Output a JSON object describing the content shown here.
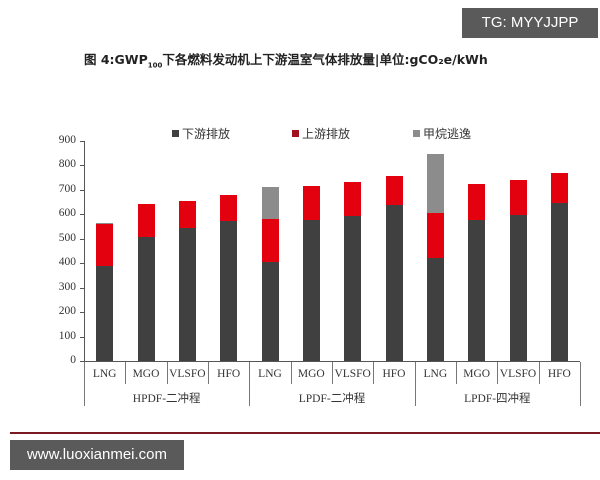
{
  "watermark_top": "TG: MYYJJPP",
  "watermark_bottom": "www.luoxianmei.com",
  "title": {
    "prefix": "图 4:GWP",
    "sub": "100",
    "suffix": "下各燃料发动机上下游温室气体排放量|单位:gCO₂e/kWh"
  },
  "legend": [
    {
      "label": "下游排放",
      "color": "#404040"
    },
    {
      "label": "上游排放",
      "color": "#e3000f"
    },
    {
      "label": "甲烷逃逸",
      "color": "#8c8c8c"
    }
  ],
  "y_ticks": [
    "900",
    "800",
    "700",
    "600",
    "500",
    "400",
    "300",
    "200",
    "100",
    "0"
  ],
  "groups": [
    "HPDF-二冲程",
    "LPDF-二冲程",
    "LPDF-四冲程"
  ],
  "categories": [
    "LNG",
    "MGO",
    "VLSFO",
    "HFO",
    "LNG",
    "MGO",
    "VLSFO",
    "HFO",
    "LNG",
    "MGO",
    "VLSFO",
    "HFO"
  ],
  "chart_data": {
    "type": "bar",
    "stacked": true,
    "title": "图 4:GWP100下各燃料发动机上下游温室气体排放量|单位:gCO2e/kWh",
    "xlabel": "",
    "ylabel": "",
    "ylim": [
      0,
      900
    ],
    "yticks": [
      0,
      100,
      200,
      300,
      400,
      500,
      600,
      700,
      800,
      900
    ],
    "grid": false,
    "legend_position": "top",
    "groups": [
      {
        "name": "HPDF-二冲程",
        "categories": [
          "LNG",
          "MGO",
          "VLSFO",
          "HFO"
        ]
      },
      {
        "name": "LPDF-二冲程",
        "categories": [
          "LNG",
          "MGO",
          "VLSFO",
          "HFO"
        ]
      },
      {
        "name": "LPDF-四冲程",
        "categories": [
          "LNG",
          "MGO",
          "VLSFO",
          "HFO"
        ]
      }
    ],
    "categories": [
      "HPDF-二冲程 LNG",
      "HPDF-二冲程 MGO",
      "HPDF-二冲程 VLSFO",
      "HPDF-二冲程 HFO",
      "LPDF-二冲程 LNG",
      "LPDF-二冲程 MGO",
      "LPDF-二冲程 VLSFO",
      "LPDF-二冲程 HFO",
      "LPDF-四冲程 LNG",
      "LPDF-四冲程 MGO",
      "LPDF-四冲程 VLSFO",
      "LPDF-四冲程 HFO"
    ],
    "series": [
      {
        "name": "下游排放",
        "color": "#404040",
        "values": [
          389,
          507,
          544,
          573,
          405,
          577,
          593,
          638,
          421,
          577,
          597,
          646
        ]
      },
      {
        "name": "上游排放",
        "color": "#e3000f",
        "values": [
          171,
          135,
          111,
          106,
          176,
          139,
          139,
          119,
          185,
          147,
          144,
          123
        ]
      },
      {
        "name": "甲烷逃逸",
        "color": "#8c8c8c",
        "values": [
          6,
          0,
          0,
          0,
          131,
          0,
          0,
          0,
          241,
          0,
          0,
          0
        ]
      }
    ]
  }
}
